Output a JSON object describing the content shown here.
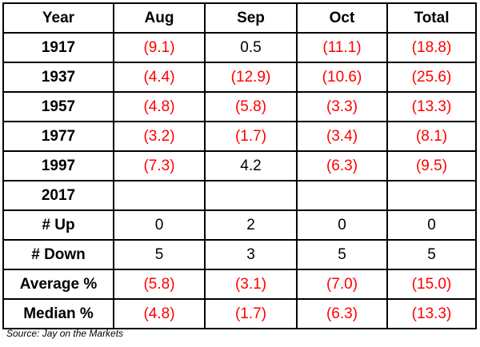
{
  "table": {
    "headers": [
      "Year",
      "Aug",
      "Sep",
      "Oct",
      "Total"
    ],
    "rows": [
      {
        "label": "1917",
        "cells": [
          {
            "text": "(9.1)",
            "negative": true
          },
          {
            "text": "0.5",
            "negative": false
          },
          {
            "text": "(11.1)",
            "negative": true
          },
          {
            "text": "(18.8)",
            "negative": true
          }
        ]
      },
      {
        "label": "1937",
        "cells": [
          {
            "text": "(4.4)",
            "negative": true
          },
          {
            "text": "(12.9)",
            "negative": true
          },
          {
            "text": "(10.6)",
            "negative": true
          },
          {
            "text": "(25.6)",
            "negative": true
          }
        ]
      },
      {
        "label": "1957",
        "cells": [
          {
            "text": "(4.8)",
            "negative": true
          },
          {
            "text": "(5.8)",
            "negative": true
          },
          {
            "text": "(3.3)",
            "negative": true
          },
          {
            "text": "(13.3)",
            "negative": true
          }
        ]
      },
      {
        "label": "1977",
        "cells": [
          {
            "text": "(3.2)",
            "negative": true
          },
          {
            "text": "(1.7)",
            "negative": true
          },
          {
            "text": "(3.4)",
            "negative": true
          },
          {
            "text": "(8.1)",
            "negative": true
          }
        ]
      },
      {
        "label": "1997",
        "cells": [
          {
            "text": "(7.3)",
            "negative": true
          },
          {
            "text": "4.2",
            "negative": false
          },
          {
            "text": "(6.3)",
            "negative": true
          },
          {
            "text": "(9.5)",
            "negative": true
          }
        ]
      },
      {
        "label": "2017",
        "cells": [
          {
            "text": "",
            "negative": false
          },
          {
            "text": "",
            "negative": false
          },
          {
            "text": "",
            "negative": false
          },
          {
            "text": "",
            "negative": false
          }
        ]
      },
      {
        "label": "# Up",
        "cells": [
          {
            "text": "0",
            "negative": false
          },
          {
            "text": "2",
            "negative": false
          },
          {
            "text": "0",
            "negative": false
          },
          {
            "text": "0",
            "negative": false
          }
        ]
      },
      {
        "label": "# Down",
        "cells": [
          {
            "text": "5",
            "negative": false
          },
          {
            "text": "3",
            "negative": false
          },
          {
            "text": "5",
            "negative": false
          },
          {
            "text": "5",
            "negative": false
          }
        ]
      },
      {
        "label": "Average %",
        "cells": [
          {
            "text": "(5.8)",
            "negative": true
          },
          {
            "text": "(3.1)",
            "negative": true
          },
          {
            "text": "(7.0)",
            "negative": true
          },
          {
            "text": "(15.0)",
            "negative": true
          }
        ]
      },
      {
        "label": "Median %",
        "cells": [
          {
            "text": "(4.8)",
            "negative": true
          },
          {
            "text": "(1.7)",
            "negative": true
          },
          {
            "text": "(6.3)",
            "negative": true
          },
          {
            "text": "(13.3)",
            "negative": true
          }
        ]
      }
    ]
  },
  "source": "Source: Jay on the Markets",
  "colors": {
    "negative": "#ff0000",
    "positive": "#000000",
    "border": "#000000"
  }
}
